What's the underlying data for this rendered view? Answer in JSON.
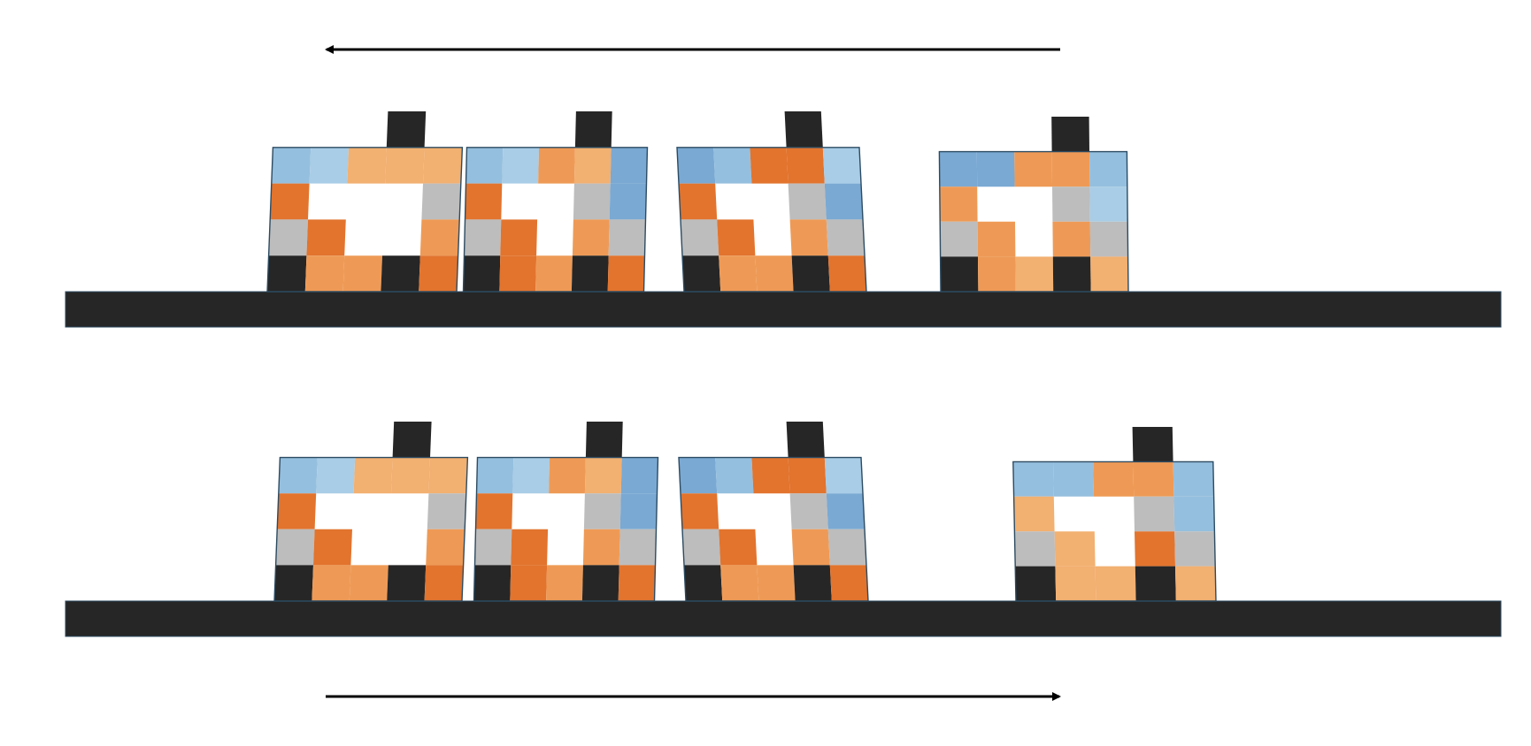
{
  "palette": {
    "black": "#262626",
    "orange_dark": "#e2742e",
    "orange_mid": "#ee9a56",
    "orange_light": "#f2b071",
    "blue_dark": "#7aa9d3",
    "blue_mid": "#95bfde",
    "blue_light": "#a9cde6",
    "gray": "#bdbdbd",
    "outline": "#2c4b62",
    "ground": "#262626",
    "arrow": "#000000"
  },
  "rows": [
    {
      "arrow_direction": "left",
      "frames": [
        {
          "shape": "lean_left",
          "colors": [
            [
              "hole",
              "hole",
              "hole",
              "black",
              "hole",
              "hole",
              "hole"
            ],
            [
              "blue_mid",
              "blue_light",
              "orange_light",
              "orange_light",
              "orange_light",
              "blue_dark",
              "hole"
            ],
            [
              "orange_dark",
              "hole",
              "hole",
              "hole",
              "gray",
              "blue_light",
              "hole"
            ],
            [
              "gray",
              "orange_dark",
              "hole",
              "hole",
              "orange_mid",
              "gray",
              "hole"
            ],
            [
              "black",
              "orange_mid",
              "orange_mid",
              "black",
              "orange_dark",
              "hole",
              "hole"
            ]
          ]
        },
        {
          "shape": "lean_left",
          "colors": [
            [
              "hole",
              "hole",
              "hole",
              "black",
              "hole",
              "hole",
              "hole"
            ],
            [
              "blue_mid",
              "blue_light",
              "orange_mid",
              "orange_light",
              "blue_dark",
              "hole",
              "hole"
            ],
            [
              "orange_dark",
              "hole",
              "hole",
              "gray",
              "blue_dark",
              "hole",
              "hole"
            ],
            [
              "gray",
              "orange_dark",
              "hole",
              "orange_mid",
              "gray",
              "hole",
              "hole"
            ],
            [
              "black",
              "orange_dark",
              "orange_mid",
              "black",
              "orange_dark",
              "hole",
              "hole"
            ]
          ]
        },
        {
          "shape": "bulge_right",
          "colors": [
            [
              "hole",
              "hole",
              "hole",
              "black",
              "hole",
              "hole",
              "hole"
            ],
            [
              "blue_dark",
              "blue_mid",
              "orange_dark",
              "orange_dark",
              "blue_light",
              "hole",
              "hole"
            ],
            [
              "orange_dark",
              "hole",
              "hole",
              "gray",
              "blue_dark",
              "hole",
              "hole"
            ],
            [
              "gray",
              "orange_dark",
              "hole",
              "orange_mid",
              "gray",
              "hole",
              "hole"
            ],
            [
              "black",
              "orange_mid",
              "orange_mid",
              "black",
              "orange_dark",
              "hole",
              "hole"
            ]
          ]
        },
        {
          "shape": "upright",
          "colors": [
            [
              "hole",
              "hole",
              "hole",
              "black",
              "hole",
              "hole",
              "hole"
            ],
            [
              "blue_dark",
              "blue_dark",
              "orange_mid",
              "orange_mid",
              "blue_mid",
              "hole",
              "hole"
            ],
            [
              "orange_mid",
              "hole",
              "hole",
              "gray",
              "blue_light",
              "hole",
              "hole"
            ],
            [
              "gray",
              "orange_mid",
              "hole",
              "orange_mid",
              "gray",
              "hole",
              "hole"
            ],
            [
              "black",
              "orange_mid",
              "orange_light",
              "black",
              "orange_light",
              "hole",
              "hole"
            ]
          ]
        }
      ]
    },
    {
      "arrow_direction": "right",
      "frames": [
        {
          "shape": "lean_left",
          "colors": [
            [
              "hole",
              "hole",
              "hole",
              "black",
              "hole",
              "hole",
              "hole"
            ],
            [
              "blue_mid",
              "blue_light",
              "orange_light",
              "orange_light",
              "orange_light",
              "blue_dark",
              "hole"
            ],
            [
              "orange_dark",
              "hole",
              "hole",
              "hole",
              "gray",
              "blue_light",
              "hole"
            ],
            [
              "gray",
              "orange_dark",
              "hole",
              "hole",
              "orange_mid",
              "gray",
              "hole"
            ],
            [
              "black",
              "orange_mid",
              "orange_mid",
              "black",
              "orange_dark",
              "hole",
              "hole"
            ]
          ]
        },
        {
          "shape": "lean_left",
          "colors": [
            [
              "hole",
              "hole",
              "hole",
              "black",
              "hole",
              "hole",
              "hole"
            ],
            [
              "blue_mid",
              "blue_light",
              "orange_mid",
              "orange_light",
              "blue_dark",
              "hole",
              "hole"
            ],
            [
              "orange_dark",
              "hole",
              "hole",
              "gray",
              "blue_dark",
              "hole",
              "hole"
            ],
            [
              "gray",
              "orange_dark",
              "hole",
              "orange_mid",
              "gray",
              "hole",
              "hole"
            ],
            [
              "black",
              "orange_dark",
              "orange_mid",
              "black",
              "orange_dark",
              "hole",
              "hole"
            ]
          ]
        },
        {
          "shape": "bulge_right",
          "colors": [
            [
              "hole",
              "hole",
              "hole",
              "black",
              "hole",
              "hole",
              "hole"
            ],
            [
              "blue_dark",
              "blue_mid",
              "orange_dark",
              "orange_dark",
              "blue_light",
              "hole",
              "hole"
            ],
            [
              "orange_dark",
              "hole",
              "hole",
              "gray",
              "blue_dark",
              "hole",
              "hole"
            ],
            [
              "gray",
              "orange_dark",
              "hole",
              "orange_mid",
              "gray",
              "hole",
              "hole"
            ],
            [
              "black",
              "orange_mid",
              "orange_mid",
              "black",
              "orange_dark",
              "hole",
              "hole"
            ]
          ]
        },
        {
          "shape": "stretched",
          "colors": [
            [
              "hole",
              "hole",
              "hole",
              "black",
              "hole",
              "hole",
              "hole"
            ],
            [
              "blue_mid",
              "blue_mid",
              "orange_mid",
              "orange_mid",
              "blue_mid",
              "hole",
              "hole"
            ],
            [
              "orange_light",
              "hole",
              "hole",
              "gray",
              "blue_mid",
              "hole",
              "hole"
            ],
            [
              "gray",
              "orange_light",
              "hole",
              "orange_dark",
              "gray",
              "hole",
              "hole"
            ],
            [
              "black",
              "orange_light",
              "orange_light",
              "black",
              "orange_light",
              "hole",
              "hole"
            ]
          ]
        }
      ]
    }
  ]
}
